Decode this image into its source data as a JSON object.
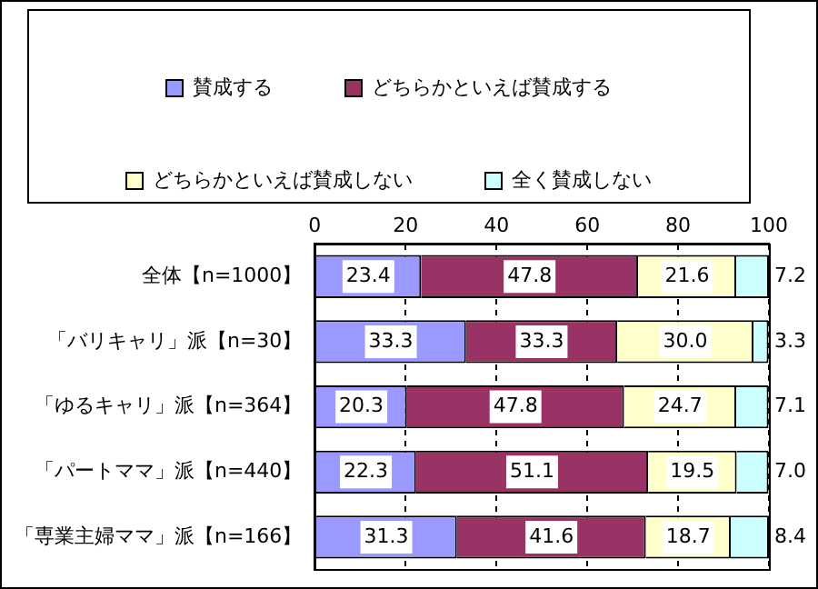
{
  "chart_data": {
    "type": "bar",
    "orientation": "horizontal",
    "stacked": true,
    "categories": [
      "全体【n=1000】",
      "「バリキャリ」派【n=30】",
      "「ゆるキャリ」派【n=364】",
      "「パートママ」派【n=440】",
      "「専業主婦ママ」派【n=166】"
    ],
    "series": [
      {
        "name": "賛成する",
        "color": "#9999ff",
        "values": [
          23.4,
          33.3,
          20.3,
          22.3,
          31.3
        ],
        "value_labels": [
          "23.4",
          "33.3",
          "20.3",
          "22.3",
          "31.3"
        ]
      },
      {
        "name": "どちらかといえば賛成する",
        "color": "#993366",
        "values": [
          47.8,
          33.3,
          47.8,
          51.1,
          41.6
        ],
        "value_labels": [
          "47.8",
          "33.3",
          "47.8",
          "51.1",
          "41.6"
        ]
      },
      {
        "name": "どちらかといえば賛成しない",
        "color": "#ffffcc",
        "values": [
          21.6,
          30.0,
          24.7,
          19.5,
          18.7
        ],
        "value_labels": [
          "21.6",
          "30.0",
          "24.7",
          "19.5",
          "18.7"
        ]
      },
      {
        "name": "全く賛成しない",
        "color": "#ccffff",
        "values": [
          7.2,
          3.3,
          7.1,
          7.0,
          8.4
        ],
        "value_labels": [
          "7.2",
          "3.3",
          "7.1",
          "7.0",
          "8.4"
        ]
      }
    ],
    "xlim": [
      0,
      100
    ],
    "xticks": [
      0,
      20,
      40,
      60,
      80,
      100
    ],
    "grid": "x",
    "legend": "top"
  }
}
